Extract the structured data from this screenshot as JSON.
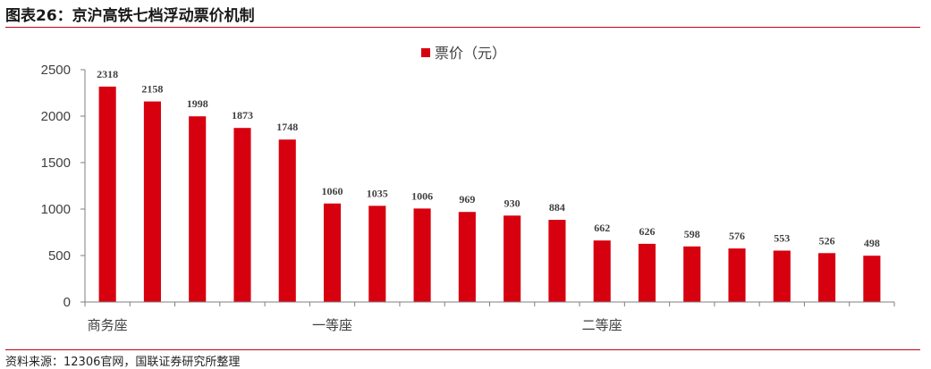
{
  "header": {
    "title": "图表26：京沪高铁七档浮动票价机制"
  },
  "footer": {
    "source": "资料来源：12306官网，国联证券研究所整理"
  },
  "colors": {
    "bar": "#d7000f",
    "rule": "#c0001b",
    "axis": "#7f7f7f"
  },
  "chart_data": {
    "type": "bar",
    "title": "",
    "xlabel": "",
    "ylabel": "",
    "ylim": [
      0,
      2500
    ],
    "yticks": [
      0,
      500,
      1000,
      1500,
      2000,
      2500
    ],
    "legend": {
      "position": "top-center"
    },
    "grid": false,
    "series": [
      {
        "name": "票价（元）",
        "values": [
          2318,
          2158,
          1998,
          1873,
          1748,
          1060,
          1035,
          1006,
          969,
          930,
          884,
          662,
          626,
          598,
          576,
          553,
          526,
          498
        ]
      }
    ],
    "category_groups": [
      {
        "label": "商务座",
        "start_index": 0
      },
      {
        "label": "一等座",
        "start_index": 5
      },
      {
        "label": "二等座",
        "start_index": 11
      }
    ]
  }
}
